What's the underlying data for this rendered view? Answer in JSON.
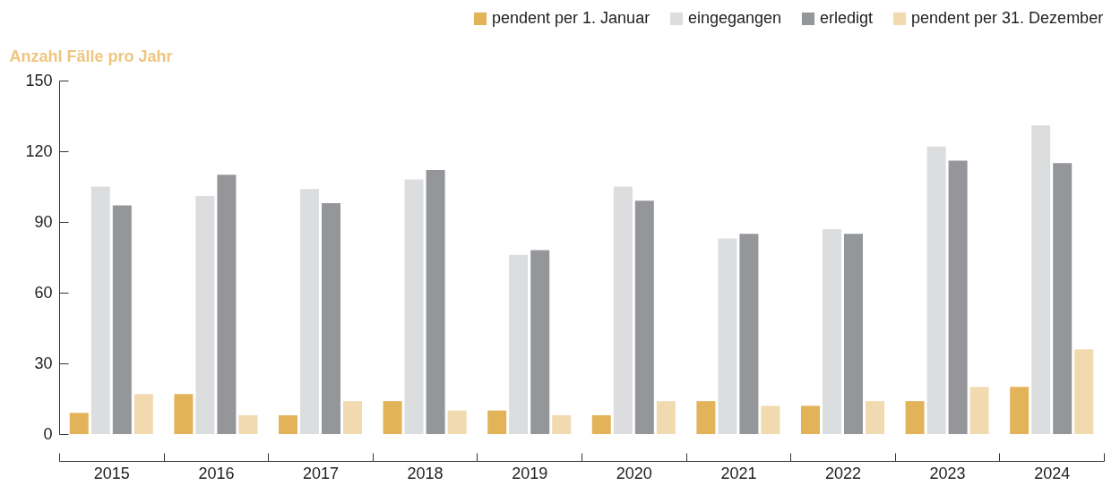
{
  "chart_data": {
    "type": "bar",
    "ylabel": "Anzahl Fälle pro Jahr",
    "categories": [
      "2015",
      "2016",
      "2017",
      "2018",
      "2019",
      "2020",
      "2021",
      "2022",
      "2023",
      "2024"
    ],
    "series": [
      {
        "name": "pendent per 1. Januar",
        "color": "#e3b35a",
        "values": [
          9,
          17,
          8,
          14,
          10,
          8,
          14,
          12,
          14,
          20
        ]
      },
      {
        "name": "eingegangen",
        "color": "#dcdddf",
        "values": [
          105,
          101,
          104,
          108,
          76,
          105,
          83,
          87,
          122,
          131
        ]
      },
      {
        "name": "erledigt",
        "color": "#959699",
        "values": [
          97,
          110,
          98,
          112,
          78,
          99,
          85,
          85,
          116,
          115
        ]
      },
      {
        "name": "pendent per 31. Dezember",
        "color": "#f2dab0",
        "values": [
          17,
          8,
          14,
          10,
          8,
          14,
          12,
          14,
          20,
          36
        ]
      }
    ],
    "ylim": [
      0,
      150
    ],
    "yticks": [
      0,
      30,
      60,
      90,
      120,
      150
    ],
    "legend": "top right"
  }
}
